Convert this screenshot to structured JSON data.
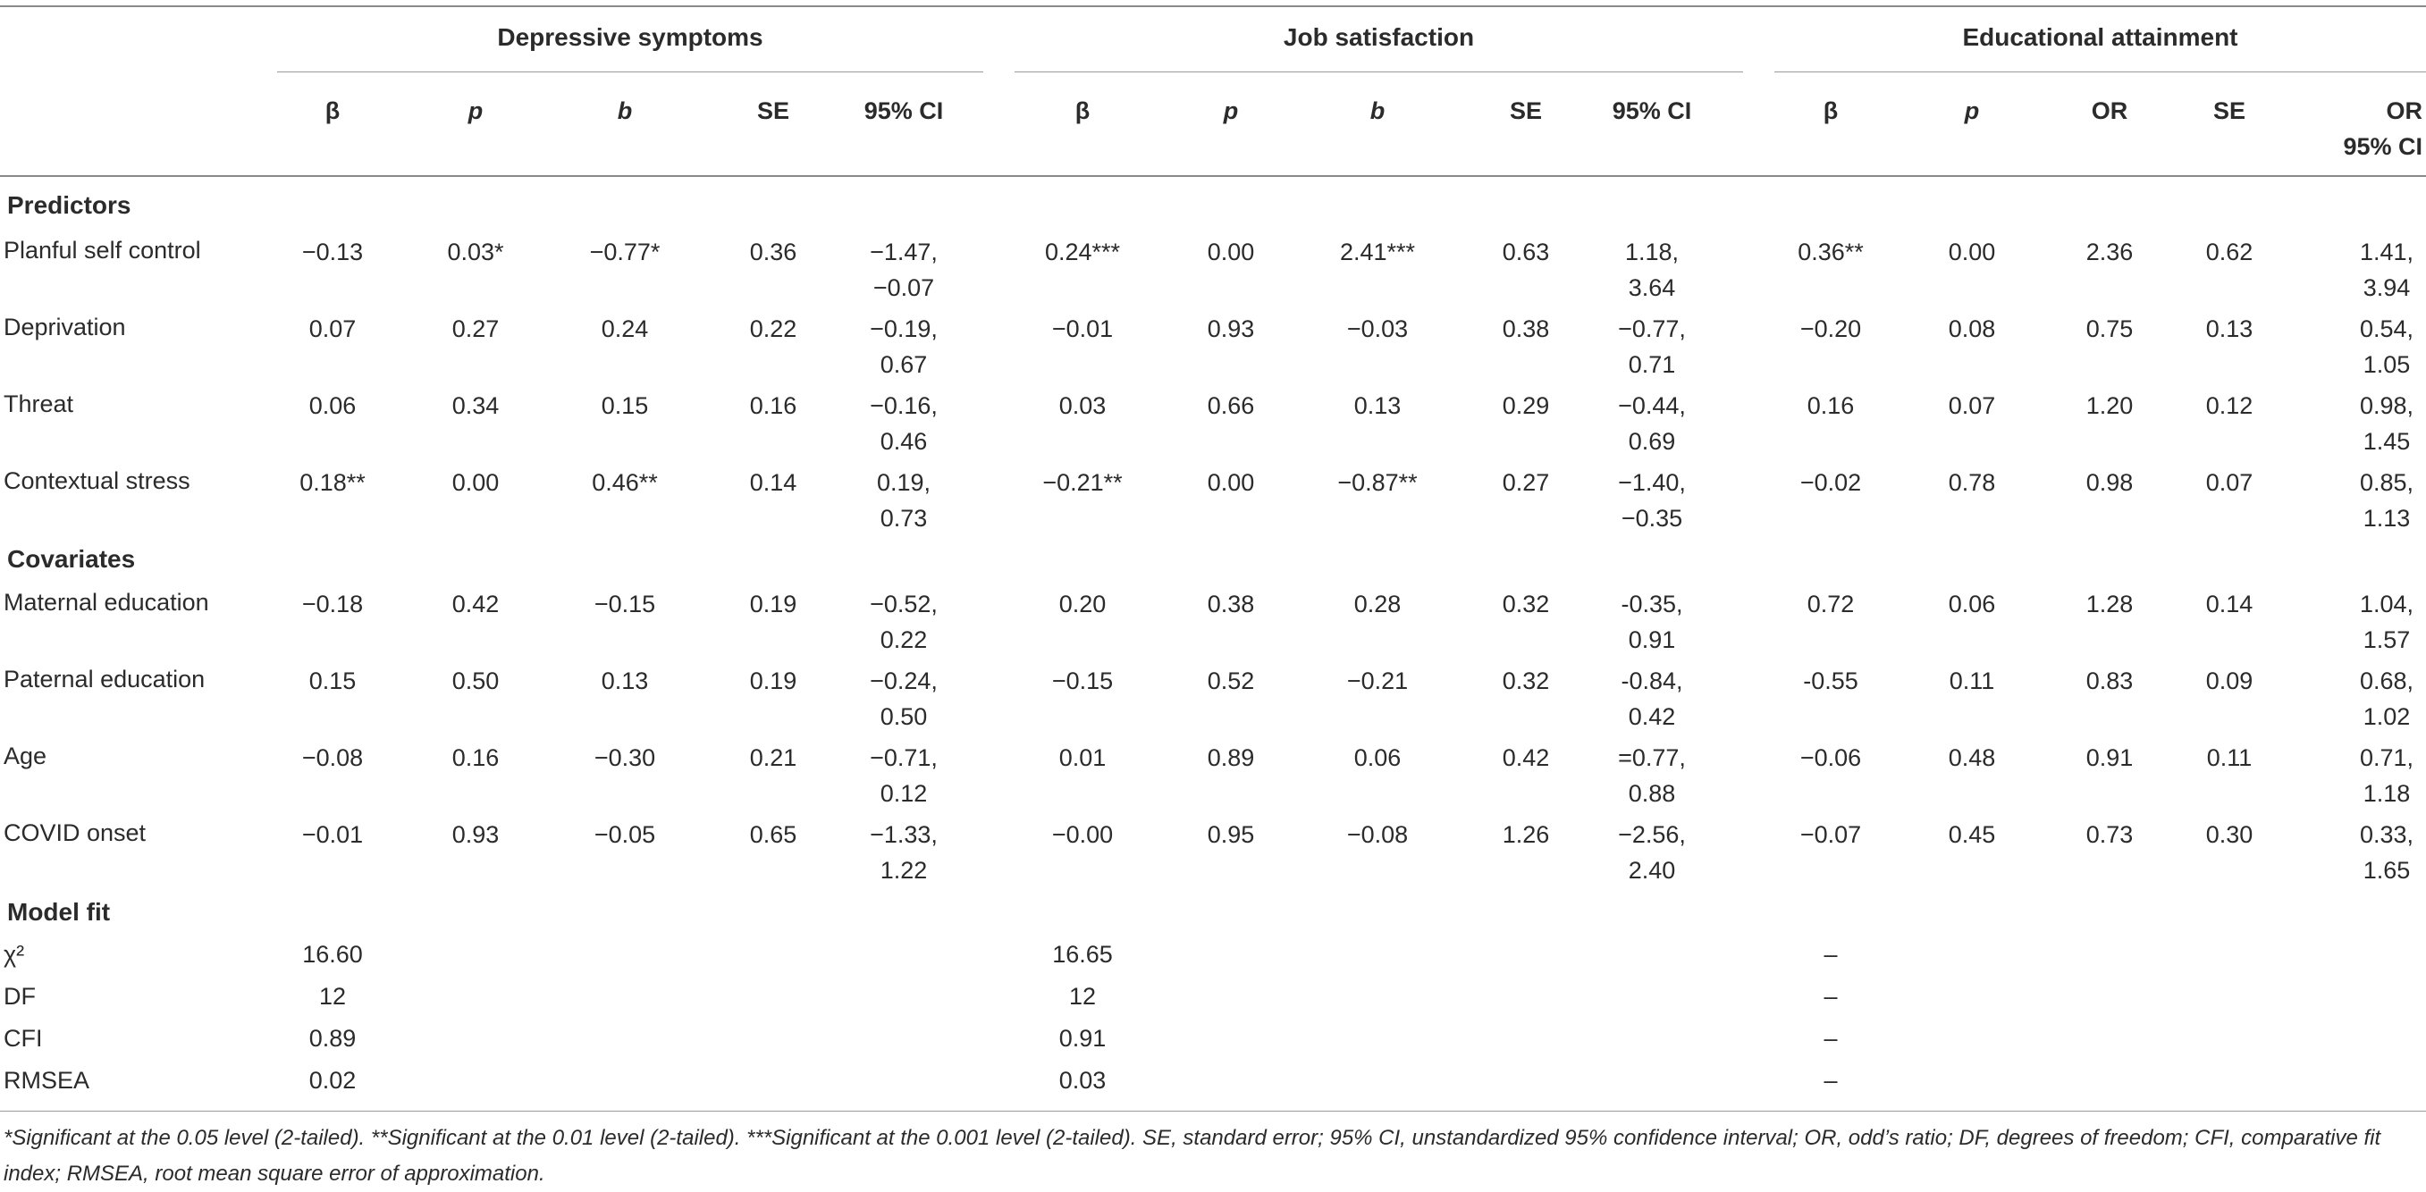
{
  "groups": [
    "Depressive symptoms",
    "Job satisfaction",
    "Educational attainment"
  ],
  "columns": [
    [
      "β",
      "p",
      "b",
      "SE",
      "95% CI"
    ],
    [
      "β",
      "p",
      "b",
      "SE",
      "95% CI"
    ],
    [
      "β",
      "p",
      "OR",
      "SE",
      "OR\n95% CI"
    ]
  ],
  "sections": {
    "predictors": "Predictors",
    "covariates": "Covariates",
    "model_fit": "Model fit"
  },
  "rows": [
    {
      "label": "Planful self control",
      "cells": [
        "−0.13",
        "0.03*",
        "−0.77*",
        "0.36",
        "−1.47,\n−0.07",
        "0.24***",
        "0.00",
        "2.41***",
        "0.63",
        "1.18,\n3.64",
        "0.36**",
        "0.00",
        "2.36",
        "0.62",
        "1.41,\n3.94"
      ]
    },
    {
      "label": "Deprivation",
      "cells": [
        "0.07",
        "0.27",
        "0.24",
        "0.22",
        "−0.19,\n0.67",
        "−0.01",
        "0.93",
        "−0.03",
        "0.38",
        "−0.77,\n0.71",
        "−0.20",
        "0.08",
        "0.75",
        "0.13",
        "0.54,\n1.05"
      ]
    },
    {
      "label": "Threat",
      "cells": [
        "0.06",
        "0.34",
        "0.15",
        "0.16",
        "−0.16,\n0.46",
        "0.03",
        "0.66",
        "0.13",
        "0.29",
        "−0.44,\n0.69",
        "0.16",
        "0.07",
        "1.20",
        "0.12",
        "0.98,\n1.45"
      ]
    },
    {
      "label": "Contextual stress",
      "cells": [
        "0.18**",
        "0.00",
        "0.46**",
        "0.14",
        "0.19,\n0.73",
        "−0.21**",
        "0.00",
        "−0.87**",
        "0.27",
        "−1.40,\n−0.35",
        "−0.02",
        "0.78",
        "0.98",
        "0.07",
        "0.85,\n1.13"
      ]
    },
    {
      "label": "Maternal education",
      "cells": [
        "−0.18",
        "0.42",
        "−0.15",
        "0.19",
        "−0.52,\n0.22",
        "0.20",
        "0.38",
        "0.28",
        "0.32",
        "-0.35,\n0.91",
        "0.72",
        "0.06",
        "1.28",
        "0.14",
        "1.04,\n1.57"
      ]
    },
    {
      "label": "Paternal education",
      "cells": [
        "0.15",
        "0.50",
        "0.13",
        "0.19",
        "−0.24,\n0.50",
        "−0.15",
        "0.52",
        "−0.21",
        "0.32",
        "-0.84,\n0.42",
        "-0.55",
        "0.11",
        "0.83",
        "0.09",
        "0.68,\n1.02"
      ]
    },
    {
      "label": "Age",
      "cells": [
        "−0.08",
        "0.16",
        "−0.30",
        "0.21",
        "−0.71,\n0.12",
        "0.01",
        "0.89",
        "0.06",
        "0.42",
        "=0.77,\n0.88",
        "−0.06",
        "0.48",
        "0.91",
        "0.11",
        "0.71,\n1.18"
      ]
    },
    {
      "label": "COVID onset",
      "cells": [
        "−0.01",
        "0.93",
        "−0.05",
        "0.65",
        "−1.33,\n1.22",
        "−0.00",
        "0.95",
        "−0.08",
        "1.26",
        "−2.56,\n2.40",
        "−0.07",
        "0.45",
        "0.73",
        "0.30",
        "0.33,\n1.65"
      ]
    }
  ],
  "fit_rows": [
    {
      "label": "χ²",
      "values": [
        "16.60",
        "16.65",
        "–"
      ]
    },
    {
      "label": "DF",
      "values": [
        "12",
        "12",
        "–"
      ]
    },
    {
      "label": "CFI",
      "values": [
        "0.89",
        "0.91",
        "–"
      ]
    },
    {
      "label": "RMSEA",
      "values": [
        "0.02",
        "0.03",
        "–"
      ]
    }
  ],
  "footnote": "*Significant at the 0.05 level (2-tailed). **Significant at the 0.01 level (2-tailed). ***Significant at the 0.001 level (2-tailed). SE, standard error; 95% CI, unstandardized 95% confidence interval; OR, odd’s ratio; DF, degrees of freedom; CFI, comparative fit index; RMSEA, root mean square error of approximation."
}
